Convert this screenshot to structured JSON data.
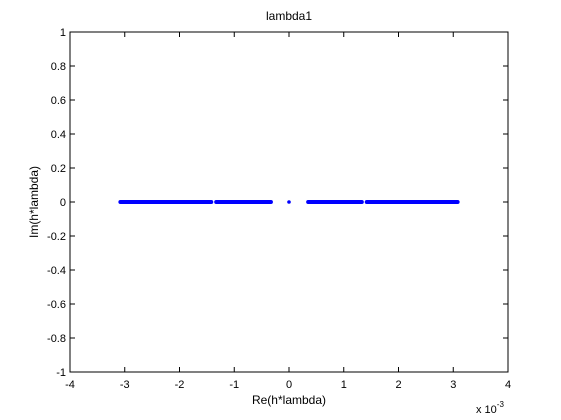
{
  "chart_data": {
    "type": "scatter",
    "title": "lambda1",
    "xlabel": "Re(h*lambda)",
    "ylabel": "Im(h*lambda)",
    "x_exponent_label": "x 10",
    "x_exponent_power": "-3",
    "xlim": [
      -4,
      4
    ],
    "ylim": [
      -1,
      1
    ],
    "x_ticks": [
      -4,
      -3,
      -2,
      -1,
      0,
      1,
      2,
      3,
      4
    ],
    "x_tick_labels": [
      "-4",
      "-3",
      "-2",
      "-1",
      "0",
      "1",
      "2",
      "3",
      "4"
    ],
    "y_ticks": [
      -1,
      -0.8,
      -0.6,
      -0.4,
      -0.2,
      0,
      0.2,
      0.4,
      0.6,
      0.8,
      1
    ],
    "y_tick_labels": [
      "-1",
      "-0.8",
      "-0.6",
      "-0.4",
      "-0.2",
      "0",
      "0.2",
      "0.4",
      "0.6",
      "0.8",
      "1"
    ],
    "grid": false,
    "marker_color": "#0000ff",
    "series": [
      {
        "segments": [
          {
            "x_from": -3.08,
            "x_to": -1.42,
            "y": 0
          },
          {
            "x_from": -1.33,
            "x_to": -0.33,
            "y": 0
          },
          {
            "x_from": 0.0,
            "x_to": 0.0,
            "y": 0
          },
          {
            "x_from": 0.35,
            "x_to": 1.33,
            "y": 0
          },
          {
            "x_from": 1.42,
            "x_to": 3.08,
            "y": 0
          }
        ]
      }
    ]
  }
}
